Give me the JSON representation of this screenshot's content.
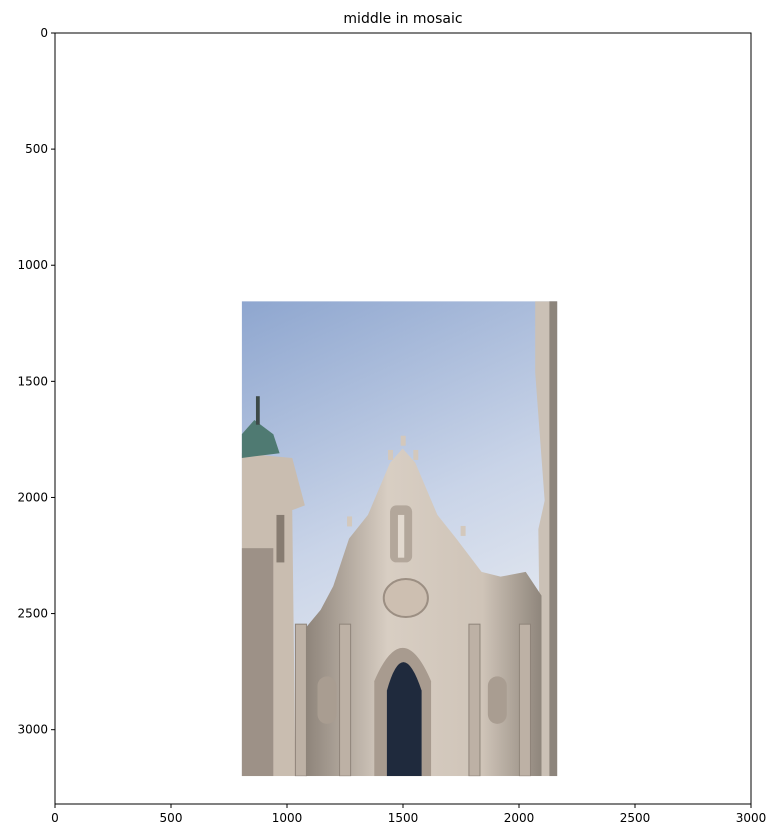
{
  "chart_data": {
    "type": "image",
    "title": "middle in mosaic",
    "xlabel": "",
    "ylabel": "",
    "xlim": [
      0,
      3000
    ],
    "ylim": [
      3320,
      0
    ],
    "xticks": [
      0,
      500,
      1000,
      1500,
      2000,
      2500,
      3000
    ],
    "yticks": [
      0,
      500,
      1000,
      1500,
      2000,
      2500,
      3000
    ],
    "grid": false,
    "image_extent": {
      "x": [
        805,
        2165
      ],
      "y": [
        1155,
        3200
      ]
    },
    "image_description_colors": {
      "sky_top": "#8ea6cf",
      "sky_bottom": "#e3e6ec",
      "facade_light": "#d9cfc4",
      "facade_shadow": "#8c8278",
      "dome": "#4f7a72",
      "window": "#1f2a3d"
    }
  }
}
